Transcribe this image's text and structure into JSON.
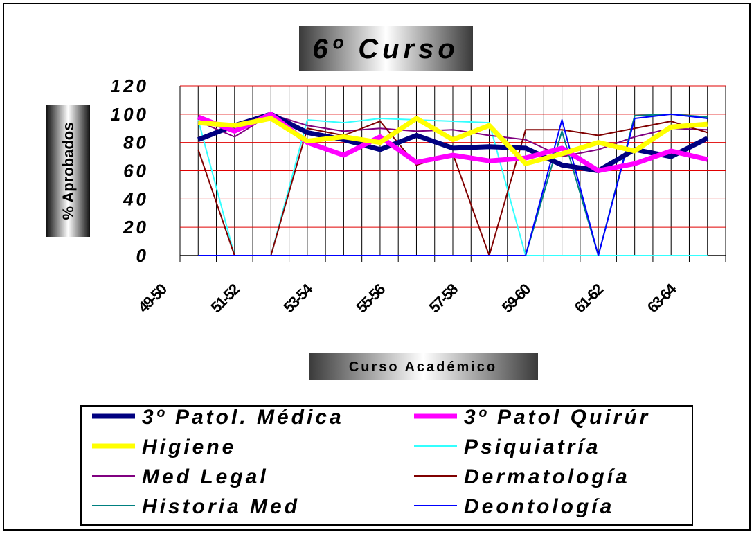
{
  "chart_data": {
    "type": "line",
    "title": "6º Curso",
    "y_label": "% Aprobados",
    "x_label": "Curso Académico",
    "categories": [
      "49-50",
      null,
      "51-52",
      null,
      "53-54",
      null,
      "55-56",
      null,
      "57-58",
      null,
      "59-60",
      null,
      "61-62",
      null,
      "63-64"
    ],
    "ylim": [
      0,
      120
    ],
    "yticks": [
      0,
      20,
      40,
      60,
      80,
      100,
      120
    ],
    "grid": true,
    "series": [
      {
        "name": "3º Patol. Médica",
        "color": "#000080",
        "width": 7,
        "values": [
          82,
          92,
          100,
          87,
          82,
          75,
          85,
          76,
          77,
          76,
          64,
          60,
          75,
          70,
          83
        ]
      },
      {
        "name": "3º Patol Quirúr",
        "color": "#ff00ff",
        "width": 7,
        "values": [
          98,
          88,
          100,
          80,
          71,
          84,
          66,
          71,
          67,
          69,
          76,
          60,
          65,
          74,
          68
        ]
      },
      {
        "name": "Higiene",
        "color": "#ffff00",
        "width": 7,
        "values": [
          94,
          92,
          97,
          81,
          84,
          80,
          97,
          82,
          92,
          65,
          72,
          80,
          74,
          91,
          93
        ]
      },
      {
        "name": "Psiquiatría",
        "color": "#33ffff",
        "width": 2,
        "values": [
          96,
          0,
          0,
          96,
          94,
          97,
          96,
          95,
          94,
          0,
          0,
          0,
          0,
          0,
          0
        ]
      },
      {
        "name": "Med Legal",
        "color": "#800080",
        "width": 2,
        "values": [
          95,
          84,
          100,
          92,
          88,
          90,
          88,
          89,
          85,
          82,
          70,
          75,
          84,
          90,
          89
        ]
      },
      {
        "name": "Dermatología",
        "color": "#800000",
        "width": 2,
        "values": [
          75,
          0,
          0,
          90,
          85,
          95,
          64,
          72,
          0,
          89,
          89,
          85,
          90,
          95,
          87
        ]
      },
      {
        "name": "Historia Med",
        "color": "#008080",
        "width": 2,
        "values": [
          0,
          0,
          0,
          0,
          0,
          0,
          0,
          0,
          0,
          0,
          88,
          0,
          99,
          100,
          98
        ]
      },
      {
        "name": "Deontología",
        "color": "#0000ff",
        "width": 2,
        "values": [
          0,
          0,
          0,
          0,
          0,
          0,
          0,
          0,
          0,
          0,
          96,
          0,
          97,
          100,
          97
        ]
      }
    ]
  }
}
